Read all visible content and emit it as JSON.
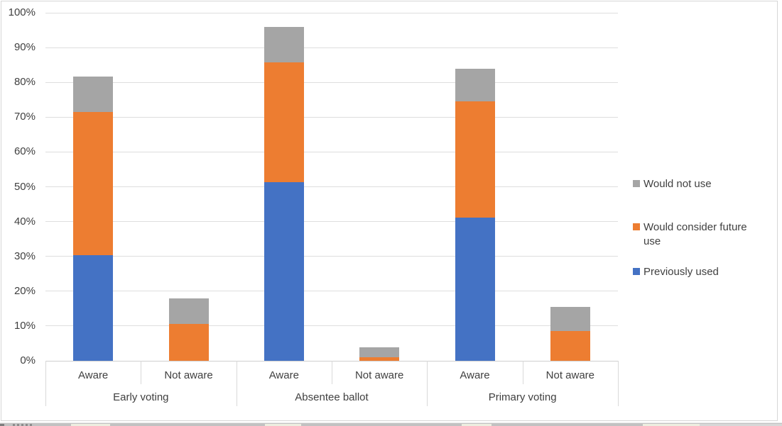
{
  "chart_data": {
    "type": "bar",
    "stacked": true,
    "title": "",
    "groups": [
      {
        "label": "Early voting",
        "subcategories": [
          "Aware",
          "Not aware"
        ]
      },
      {
        "label": "Absentee ballot",
        "subcategories": [
          "Aware",
          "Not aware"
        ]
      },
      {
        "label": "Primary voting",
        "subcategories": [
          "Aware",
          "Not aware"
        ]
      }
    ],
    "category_slots": [
      "Early voting / Aware",
      "Early voting / Not aware",
      "Absentee ballot / Aware",
      "Absentee ballot / Not aware",
      "Primary voting / Aware",
      "Primary voting / Not aware"
    ],
    "series": [
      {
        "name": "Previously used",
        "color": "#4472C4",
        "values": [
          30.3,
          0,
          51.4,
          0,
          41.2,
          0
        ]
      },
      {
        "name": "Would consider future use",
        "color": "#ED7D31",
        "values": [
          41.1,
          10.5,
          34.3,
          1.0,
          33.4,
          8.5
        ]
      },
      {
        "name": "Would not use",
        "color": "#A5A5A5",
        "values": [
          10.2,
          7.5,
          10.3,
          2.8,
          9.3,
          7.0
        ]
      }
    ],
    "ylim": [
      0,
      100
    ],
    "ytick_step": 10,
    "ytick_labels": [
      "0%",
      "10%",
      "20%",
      "30%",
      "40%",
      "50%",
      "60%",
      "70%",
      "80%",
      "90%",
      "100%"
    ],
    "grid": true,
    "legend_position": "right",
    "colors": {
      "gridline": "#DEDEDE",
      "axis_text": "#404040",
      "plot_background": "#FFFFFF"
    }
  },
  "legend": {
    "items": [
      {
        "label": "Would not use",
        "color": "#A5A5A5"
      },
      {
        "label": "Would consider future use",
        "color": "#ED7D31"
      },
      {
        "label": "Previously used",
        "color": "#4472C4"
      }
    ]
  }
}
